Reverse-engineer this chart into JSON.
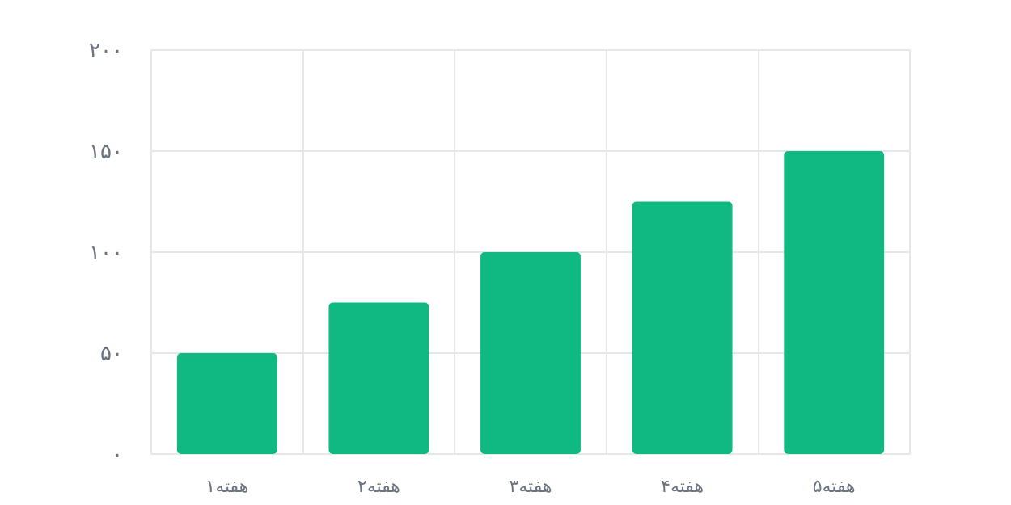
{
  "chart_data": {
    "type": "bar",
    "categories": [
      "هفته۱",
      "هفته۲",
      "هفته۳",
      "هفته۴",
      "هفته۵"
    ],
    "values": [
      50,
      75,
      100,
      125,
      150
    ],
    "color": "#10b981",
    "ylim": [
      0,
      200
    ],
    "yticks": [
      {
        "value": 0,
        "label": "۰"
      },
      {
        "value": 50,
        "label": "۵۰"
      },
      {
        "value": 100,
        "label": "۱۰۰"
      },
      {
        "value": 150,
        "label": "۱۵۰"
      },
      {
        "value": 200,
        "label": "۲۰۰"
      }
    ],
    "grid": true
  }
}
